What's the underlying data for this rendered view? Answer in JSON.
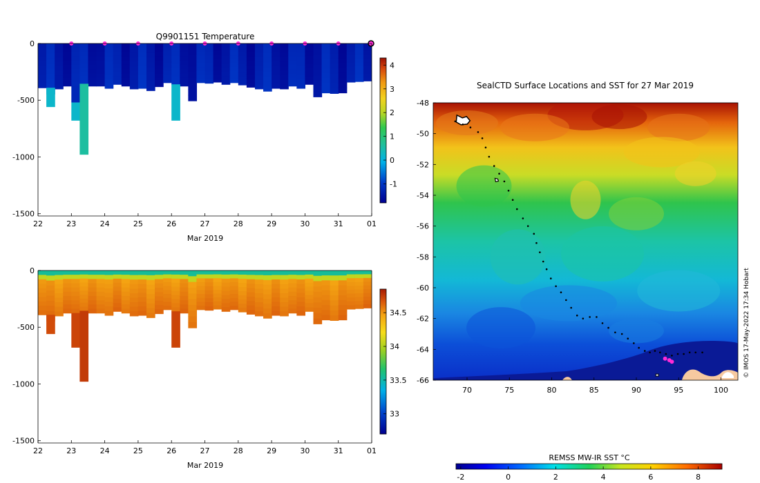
{
  "chart_data": [
    {
      "type": "heatmap",
      "title": "Q9901151  Temperature",
      "xlabel": "Mar 2019",
      "ylabel": "",
      "x_ticks": [
        "22",
        "23",
        "24",
        "25",
        "26",
        "27",
        "28",
        "29",
        "30",
        "31",
        "01"
      ],
      "xlim": [
        22,
        32
      ],
      "ylim": [
        -1520,
        0
      ],
      "y_ticks": [
        0,
        -500,
        -1000,
        -1500
      ],
      "colorbar": {
        "min": -1.8,
        "max": 4.3,
        "ticks": [
          -1,
          0,
          1,
          2,
          3,
          4
        ],
        "colormap": "parula"
      },
      "surface_markers_day": [
        23,
        24,
        25,
        26,
        27,
        28,
        29,
        30,
        31
      ],
      "current_marker_day": 32,
      "profiles": [
        {
          "day": 22.0,
          "depth": 390
        },
        {
          "day": 22.25,
          "depth": 445
        },
        {
          "day": 22.5,
          "depth": 400
        },
        {
          "day": 22.75,
          "depth": 375
        },
        {
          "day": 23.0,
          "depth": 375
        },
        {
          "day": 23.25,
          "depth": 355
        },
        {
          "day": 23.5,
          "depth": 375
        },
        {
          "day": 23.75,
          "depth": 375
        },
        {
          "day": 24.0,
          "depth": 395
        },
        {
          "day": 24.25,
          "depth": 360
        },
        {
          "day": 24.5,
          "depth": 375
        },
        {
          "day": 24.75,
          "depth": 400
        },
        {
          "day": 25.0,
          "depth": 395
        },
        {
          "day": 25.25,
          "depth": 415
        },
        {
          "day": 25.5,
          "depth": 380
        },
        {
          "day": 25.75,
          "depth": 345
        },
        {
          "day": 26.0,
          "depth": 360
        },
        {
          "day": 26.25,
          "depth": 375
        },
        {
          "day": 26.5,
          "depth": 505
        },
        {
          "day": 26.75,
          "depth": 345
        },
        {
          "day": 27.0,
          "depth": 350
        },
        {
          "day": 27.25,
          "depth": 340
        },
        {
          "day": 27.5,
          "depth": 360
        },
        {
          "day": 27.75,
          "depth": 345
        },
        {
          "day": 28.0,
          "depth": 365
        },
        {
          "day": 28.25,
          "depth": 385
        },
        {
          "day": 28.5,
          "depth": 400
        },
        {
          "day": 28.75,
          "depth": 420
        },
        {
          "day": 29.0,
          "depth": 395
        },
        {
          "day": 29.25,
          "depth": 400
        },
        {
          "day": 29.5,
          "depth": 375
        },
        {
          "day": 29.75,
          "depth": 395
        },
        {
          "day": 30.0,
          "depth": 360
        },
        {
          "day": 30.25,
          "depth": 470
        },
        {
          "day": 30.5,
          "depth": 435
        },
        {
          "day": 30.75,
          "depth": 440
        },
        {
          "day": 31.0,
          "depth": 435
        },
        {
          "day": 31.25,
          "depth": 340
        },
        {
          "day": 31.5,
          "depth": 335
        },
        {
          "day": 31.75,
          "depth": 330
        }
      ],
      "deep_columns": [
        {
          "day": 22.25,
          "top": 390,
          "depth": 560,
          "value": 0.2
        },
        {
          "day": 23.0,
          "top": 375,
          "depth": 520,
          "value": -1.2
        },
        {
          "day": 23.0,
          "top": 520,
          "depth": 680,
          "value": 0.2
        },
        {
          "day": 23.25,
          "top": 355,
          "depth": 980,
          "value": 0.6
        },
        {
          "day": 26.0,
          "top": 360,
          "depth": 680,
          "value": 0.2
        }
      ]
    },
    {
      "type": "heatmap",
      "title": "",
      "xlabel": "Mar 2019",
      "ylabel": "",
      "x_ticks": [
        "22",
        "23",
        "24",
        "25",
        "26",
        "27",
        "28",
        "29",
        "30",
        "31",
        "01"
      ],
      "xlim": [
        22,
        32
      ],
      "ylim": [
        -1520,
        0
      ],
      "y_ticks": [
        0,
        -500,
        -1000,
        -1500
      ],
      "colorbar": {
        "min": 32.7,
        "max": 34.85,
        "ticks": [
          33,
          33.5,
          34,
          34.5
        ],
        "colormap": "parula"
      },
      "surface_salinity": 33.7,
      "deep_salinity": 34.55,
      "profiles_same_as_panel_1": true,
      "deep_columns": [
        {
          "day": 22.25,
          "top": 390,
          "depth": 560,
          "value": 34.7
        },
        {
          "day": 23.0,
          "top": 375,
          "depth": 680,
          "value": 34.72
        },
        {
          "day": 23.25,
          "top": 355,
          "depth": 980,
          "value": 34.75
        },
        {
          "day": 26.0,
          "top": 360,
          "depth": 680,
          "value": 34.72
        }
      ]
    },
    {
      "type": "heatmap",
      "title": "SealCTD Surface Locations and SST for 27 Mar 2019",
      "xlabel": "",
      "ylabel": "",
      "x_ticks": [
        70,
        75,
        80,
        85,
        90,
        95,
        100
      ],
      "y_ticks": [
        -48,
        -50,
        -52,
        -54,
        -56,
        -58,
        -60,
        -62,
        -64,
        -66
      ],
      "xlim": [
        66,
        102
      ],
      "ylim": [
        -66,
        -48
      ],
      "colorbar": {
        "label": "REMSS MW-IR SST °C",
        "min": -2.2,
        "max": 9.0,
        "ticks": [
          -2,
          0,
          2,
          4,
          6,
          8
        ],
        "colormap": "jet"
      },
      "track": [
        [
          68.6,
          -49.2
        ],
        [
          69.5,
          -49.4
        ],
        [
          70.4,
          -49.6
        ],
        [
          71.3,
          -49.9
        ],
        [
          71.8,
          -50.3
        ],
        [
          72.2,
          -50.9
        ],
        [
          72.6,
          -51.5
        ],
        [
          73.2,
          -52.1
        ],
        [
          73.8,
          -52.6
        ],
        [
          74.4,
          -53.1
        ],
        [
          74.9,
          -53.7
        ],
        [
          75.4,
          -54.3
        ],
        [
          75.9,
          -54.9
        ],
        [
          76.6,
          -55.5
        ],
        [
          77.2,
          -56.0
        ],
        [
          77.9,
          -56.5
        ],
        [
          78.2,
          -57.1
        ],
        [
          78.6,
          -57.7
        ],
        [
          79.0,
          -58.3
        ],
        [
          79.4,
          -58.8
        ],
        [
          79.9,
          -59.4
        ],
        [
          80.5,
          -59.9
        ],
        [
          81.1,
          -60.3
        ],
        [
          81.7,
          -60.8
        ],
        [
          82.3,
          -61.3
        ],
        [
          83.0,
          -61.8
        ],
        [
          83.7,
          -62.0
        ],
        [
          84.5,
          -61.9
        ],
        [
          85.3,
          -61.9
        ],
        [
          86.0,
          -62.3
        ],
        [
          86.7,
          -62.6
        ],
        [
          87.5,
          -62.9
        ],
        [
          88.3,
          -63.0
        ],
        [
          89.0,
          -63.3
        ],
        [
          89.7,
          -63.6
        ],
        [
          90.3,
          -63.9
        ],
        [
          91.0,
          -64.1
        ],
        [
          91.6,
          -64.2
        ],
        [
          92.2,
          -64.1
        ],
        [
          92.8,
          -64.2
        ],
        [
          93.5,
          -64.3
        ],
        [
          94.2,
          -64.4
        ],
        [
          94.9,
          -64.3
        ],
        [
          95.6,
          -64.3
        ],
        [
          96.3,
          -64.2
        ],
        [
          97.0,
          -64.2
        ],
        [
          97.8,
          -64.2
        ]
      ],
      "current_positions": [
        [
          93.4,
          -64.6
        ],
        [
          93.9,
          -64.7
        ],
        [
          94.2,
          -64.8
        ]
      ],
      "credit": "© IMOS 17-May-2022 17:34 Hobart"
    }
  ]
}
